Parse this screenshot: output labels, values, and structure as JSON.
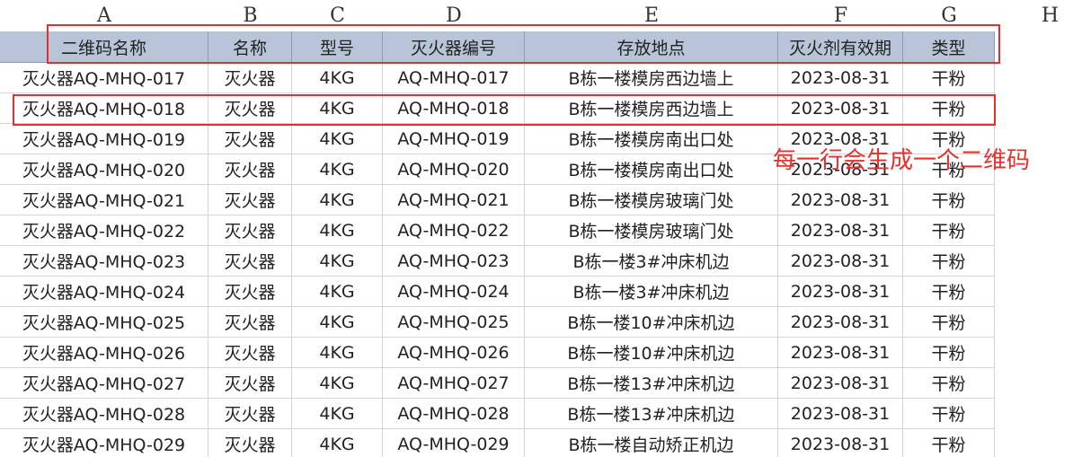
{
  "columns": [
    "A",
    "B",
    "C",
    "D",
    "E",
    "F",
    "G",
    "H"
  ],
  "header": [
    "二维码名称",
    "名称",
    "型号",
    "灭火器编号",
    "存放地点",
    "灭火剂有效期",
    "类型"
  ],
  "rows": [
    [
      "灭火器AQ-MHQ-017",
      "灭火器",
      "4KG",
      "AQ-MHQ-017",
      "B栋一楼模房西边墙上",
      "2023-08-31",
      "干粉"
    ],
    [
      "灭火器AQ-MHQ-018",
      "灭火器",
      "4KG",
      "AQ-MHQ-018",
      "B栋一楼模房西边墙上",
      "2023-08-31",
      "干粉"
    ],
    [
      "灭火器AQ-MHQ-019",
      "灭火器",
      "4KG",
      "AQ-MHQ-019",
      "B栋一楼模房南出口处",
      "2023-08-31",
      "干粉"
    ],
    [
      "灭火器AQ-MHQ-020",
      "灭火器",
      "4KG",
      "AQ-MHQ-020",
      "B栋一楼模房南出口处",
      "2023-08-31",
      "干粉"
    ],
    [
      "灭火器AQ-MHQ-021",
      "灭火器",
      "4KG",
      "AQ-MHQ-021",
      "B栋一楼模房玻璃门处",
      "2023-08-31",
      "干粉"
    ],
    [
      "灭火器AQ-MHQ-022",
      "灭火器",
      "4KG",
      "AQ-MHQ-022",
      "B栋一楼模房玻璃门处",
      "2023-08-31",
      "干粉"
    ],
    [
      "灭火器AQ-MHQ-023",
      "灭火器",
      "4KG",
      "AQ-MHQ-023",
      "B栋一楼3#冲床机边",
      "2023-08-31",
      "干粉"
    ],
    [
      "灭火器AQ-MHQ-024",
      "灭火器",
      "4KG",
      "AQ-MHQ-024",
      "B栋一楼3#冲床机边",
      "2023-08-31",
      "干粉"
    ],
    [
      "灭火器AQ-MHQ-025",
      "灭火器",
      "4KG",
      "AQ-MHQ-025",
      "B栋一楼10#冲床机边",
      "2023-08-31",
      "干粉"
    ],
    [
      "灭火器AQ-MHQ-026",
      "灭火器",
      "4KG",
      "AQ-MHQ-026",
      "B栋一楼10#冲床机边",
      "2023-08-31",
      "干粉"
    ],
    [
      "灭火器AQ-MHQ-027",
      "灭火器",
      "4KG",
      "AQ-MHQ-027",
      "B栋一楼13#冲床机边",
      "2023-08-31",
      "干粉"
    ],
    [
      "灭火器AQ-MHQ-028",
      "灭火器",
      "4KG",
      "AQ-MHQ-028",
      "B栋一楼13#冲床机边",
      "2023-08-31",
      "干粉"
    ],
    [
      "灭火器AQ-MHQ-029",
      "灭火器",
      "4KG",
      "AQ-MHQ-029",
      "B栋一楼自动矫正机边",
      "2023-08-31",
      "干粉"
    ]
  ],
  "annotation": "每一行会生成一个二维码"
}
